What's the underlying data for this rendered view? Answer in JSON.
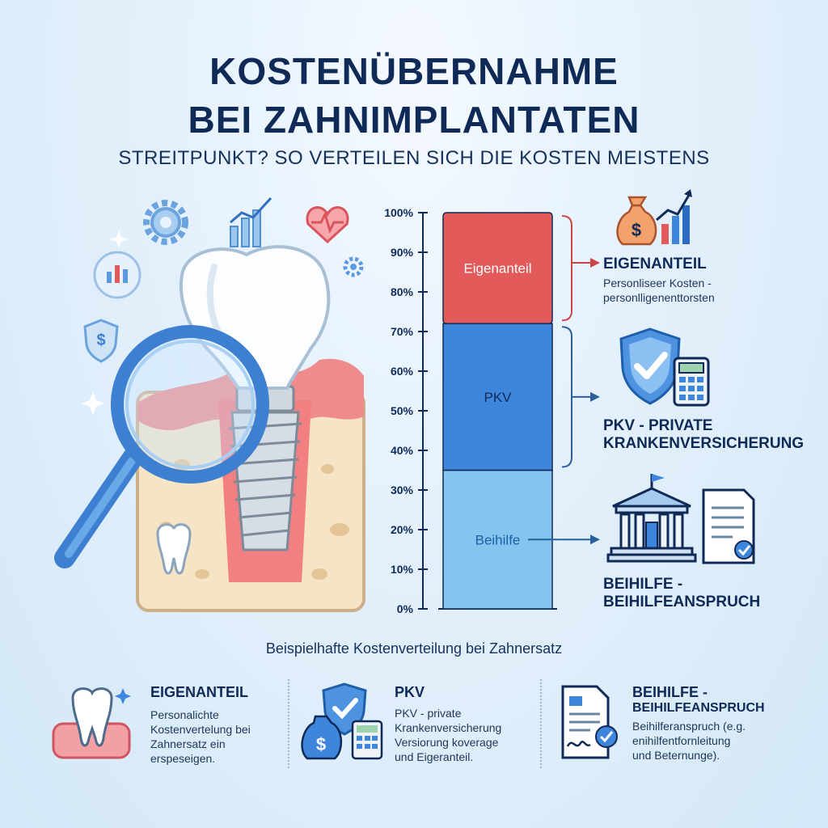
{
  "title_line1": "KOSTENÜBERNAHME",
  "title_line2": "BEI ZAHNIMPLANTATEN",
  "subtitle": "STREITPUNKT? SO VERTEILEN SICH DIE KOSTEN MEISTENS",
  "caption": "Beispielhafte Kostenverteilung bei Zahnersatz",
  "colors": {
    "eigenanteil": "#e25a5a",
    "pkv": "#3d86db",
    "beihilfe": "#84c5f0",
    "title": "#0f2a57"
  },
  "chart_data": {
    "type": "bar",
    "stacked": true,
    "categories": [
      ""
    ],
    "series": [
      {
        "name": "Beihilfe",
        "values": [
          35
        ]
      },
      {
        "name": "PKV",
        "values": [
          37
        ]
      },
      {
        "name": "Eigenanteil",
        "values": [
          28
        ]
      }
    ],
    "ylim": [
      0,
      100
    ],
    "ytick_labels": [
      "0%",
      "10%",
      "20%",
      "30%",
      "40%",
      "50%",
      "60%",
      "70%",
      "80%",
      "90%",
      "100%"
    ],
    "grid": false
  },
  "legend": [
    {
      "title": "EIGENANTEIL",
      "text1": "Personliseer Kosten -",
      "text2": "personlligenenttorsten",
      "icon": "money-bag-growth-icon"
    },
    {
      "title": "PKV - PRIVATE",
      "title2": "KRANKENVERSICHERUNG",
      "icon": "shield-calculator-icon"
    },
    {
      "title": "BEIHILFE -",
      "title2": "BEIHILFEANSPRUCH",
      "icon": "government-building-icon"
    }
  ],
  "bottom": [
    {
      "title": "EIGENANTEIL",
      "lines": [
        "Personalichte",
        "Kostenvertelung bei",
        "Zahnersatz ein",
        "erspeseigen."
      ],
      "icon": "tooth-icon"
    },
    {
      "title": "PKV",
      "lines": [
        "PKV - private",
        "Krankenversicherung",
        "Versiorung koverage",
        "und Eigeranteil."
      ],
      "icon": "money-shield-icon"
    },
    {
      "title": "BEIHILFE -",
      "title2": "BEIHILFEANSPRUCH",
      "lines": [
        "Beihilferanspruch (e.g.",
        "enihilfentfornleitung",
        "und Beternunge)."
      ],
      "icon": "document-check-icon"
    }
  ]
}
